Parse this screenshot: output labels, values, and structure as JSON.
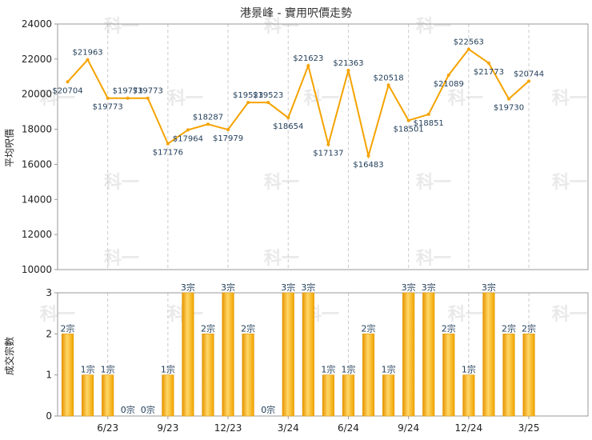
{
  "chart_data": [
    {
      "type": "line",
      "title": "港景峰 - 實用呎價走勢",
      "ylabel": "平均呎價",
      "ylim": [
        10000,
        24000
      ],
      "yticks": [
        10000,
        12000,
        14000,
        16000,
        18000,
        20000,
        22000,
        24000
      ],
      "grid": "vertical dashed",
      "line_color": "#f5a300",
      "points": [
        {
          "x": 1,
          "y": 20704,
          "label": "$20704"
        },
        {
          "x": 2,
          "y": 21963,
          "label": "$21963"
        },
        {
          "x": 3,
          "y": 19773,
          "label": "$19773"
        },
        {
          "x": 4,
          "y": 19773,
          "label": "$19773"
        },
        {
          "x": 5,
          "y": 19773,
          "label": "$19773"
        },
        {
          "x": 6,
          "y": 17176,
          "label": "$17176"
        },
        {
          "x": 7,
          "y": 17964,
          "label": "$17964"
        },
        {
          "x": 8,
          "y": 18287,
          "label": "$18287"
        },
        {
          "x": 9,
          "y": 17979,
          "label": "$17979"
        },
        {
          "x": 10,
          "y": 19523,
          "label": "$19523"
        },
        {
          "x": 11,
          "y": 19523,
          "label": "$19523"
        },
        {
          "x": 12,
          "y": 18654,
          "label": "$18654"
        },
        {
          "x": 13,
          "y": 21623,
          "label": "$21623"
        },
        {
          "x": 14,
          "y": 17137,
          "label": "$17137"
        },
        {
          "x": 15,
          "y": 21363,
          "label": "$21363"
        },
        {
          "x": 16,
          "y": 16483,
          "label": "$16483"
        },
        {
          "x": 17,
          "y": 20518,
          "label": "$20518"
        },
        {
          "x": 18,
          "y": 18501,
          "label": "$18501"
        },
        {
          "x": 19,
          "y": 18851,
          "label": "$18851"
        },
        {
          "x": 20,
          "y": 21089,
          "label": "$21089"
        },
        {
          "x": 21,
          "y": 22563,
          "label": "$22563"
        },
        {
          "x": 22,
          "y": 21773,
          "label": "$21773"
        },
        {
          "x": 23,
          "y": 19730,
          "label": "$19730"
        },
        {
          "x": 24,
          "y": 20744,
          "label": "$20744"
        }
      ]
    },
    {
      "type": "bar",
      "ylabel": "成交宗數",
      "ylim": [
        0,
        3
      ],
      "yticks": [
        0,
        1,
        2,
        3
      ],
      "bar_color": "#f5a300",
      "x_tick_labels": [
        {
          "x": 3,
          "label": "6/23"
        },
        {
          "x": 6,
          "label": "9/23"
        },
        {
          "x": 9,
          "label": "12/23"
        },
        {
          "x": 12,
          "label": "3/24"
        },
        {
          "x": 15,
          "label": "6/24"
        },
        {
          "x": 18,
          "label": "9/24"
        },
        {
          "x": 21,
          "label": "12/24"
        },
        {
          "x": 24,
          "label": "3/25"
        }
      ],
      "bars": [
        {
          "x": 1,
          "value": 2,
          "label": "2宗"
        },
        {
          "x": 2,
          "value": 1,
          "label": "1宗"
        },
        {
          "x": 3,
          "value": 1,
          "label": "1宗"
        },
        {
          "x": 4,
          "value": 0,
          "label": "0宗"
        },
        {
          "x": 5,
          "value": 0,
          "label": "0宗"
        },
        {
          "x": 6,
          "value": 1,
          "label": "1宗"
        },
        {
          "x": 7,
          "value": 3,
          "label": "3宗"
        },
        {
          "x": 8,
          "value": 2,
          "label": "2宗"
        },
        {
          "x": 9,
          "value": 3,
          "label": "3宗"
        },
        {
          "x": 10,
          "value": 2,
          "label": "2宗"
        },
        {
          "x": 11,
          "value": 0,
          "label": "0宗"
        },
        {
          "x": 12,
          "value": 3,
          "label": "3宗"
        },
        {
          "x": 13,
          "value": 3,
          "label": "3宗"
        },
        {
          "x": 14,
          "value": 1,
          "label": "1宗"
        },
        {
          "x": 15,
          "value": 1,
          "label": "1宗"
        },
        {
          "x": 16,
          "value": 2,
          "label": "2宗"
        },
        {
          "x": 17,
          "value": 1,
          "label": "1宗"
        },
        {
          "x": 18,
          "value": 3,
          "label": "3宗"
        },
        {
          "x": 19,
          "value": 3,
          "label": "3宗"
        },
        {
          "x": 20,
          "value": 2,
          "label": "2宗"
        },
        {
          "x": 21,
          "value": 1,
          "label": "1宗"
        },
        {
          "x": 22,
          "value": 3,
          "label": "3宗"
        },
        {
          "x": 23,
          "value": 2,
          "label": "2宗"
        },
        {
          "x": 24,
          "value": 2,
          "label": "2宗"
        }
      ]
    }
  ],
  "watermark_text": "科一"
}
